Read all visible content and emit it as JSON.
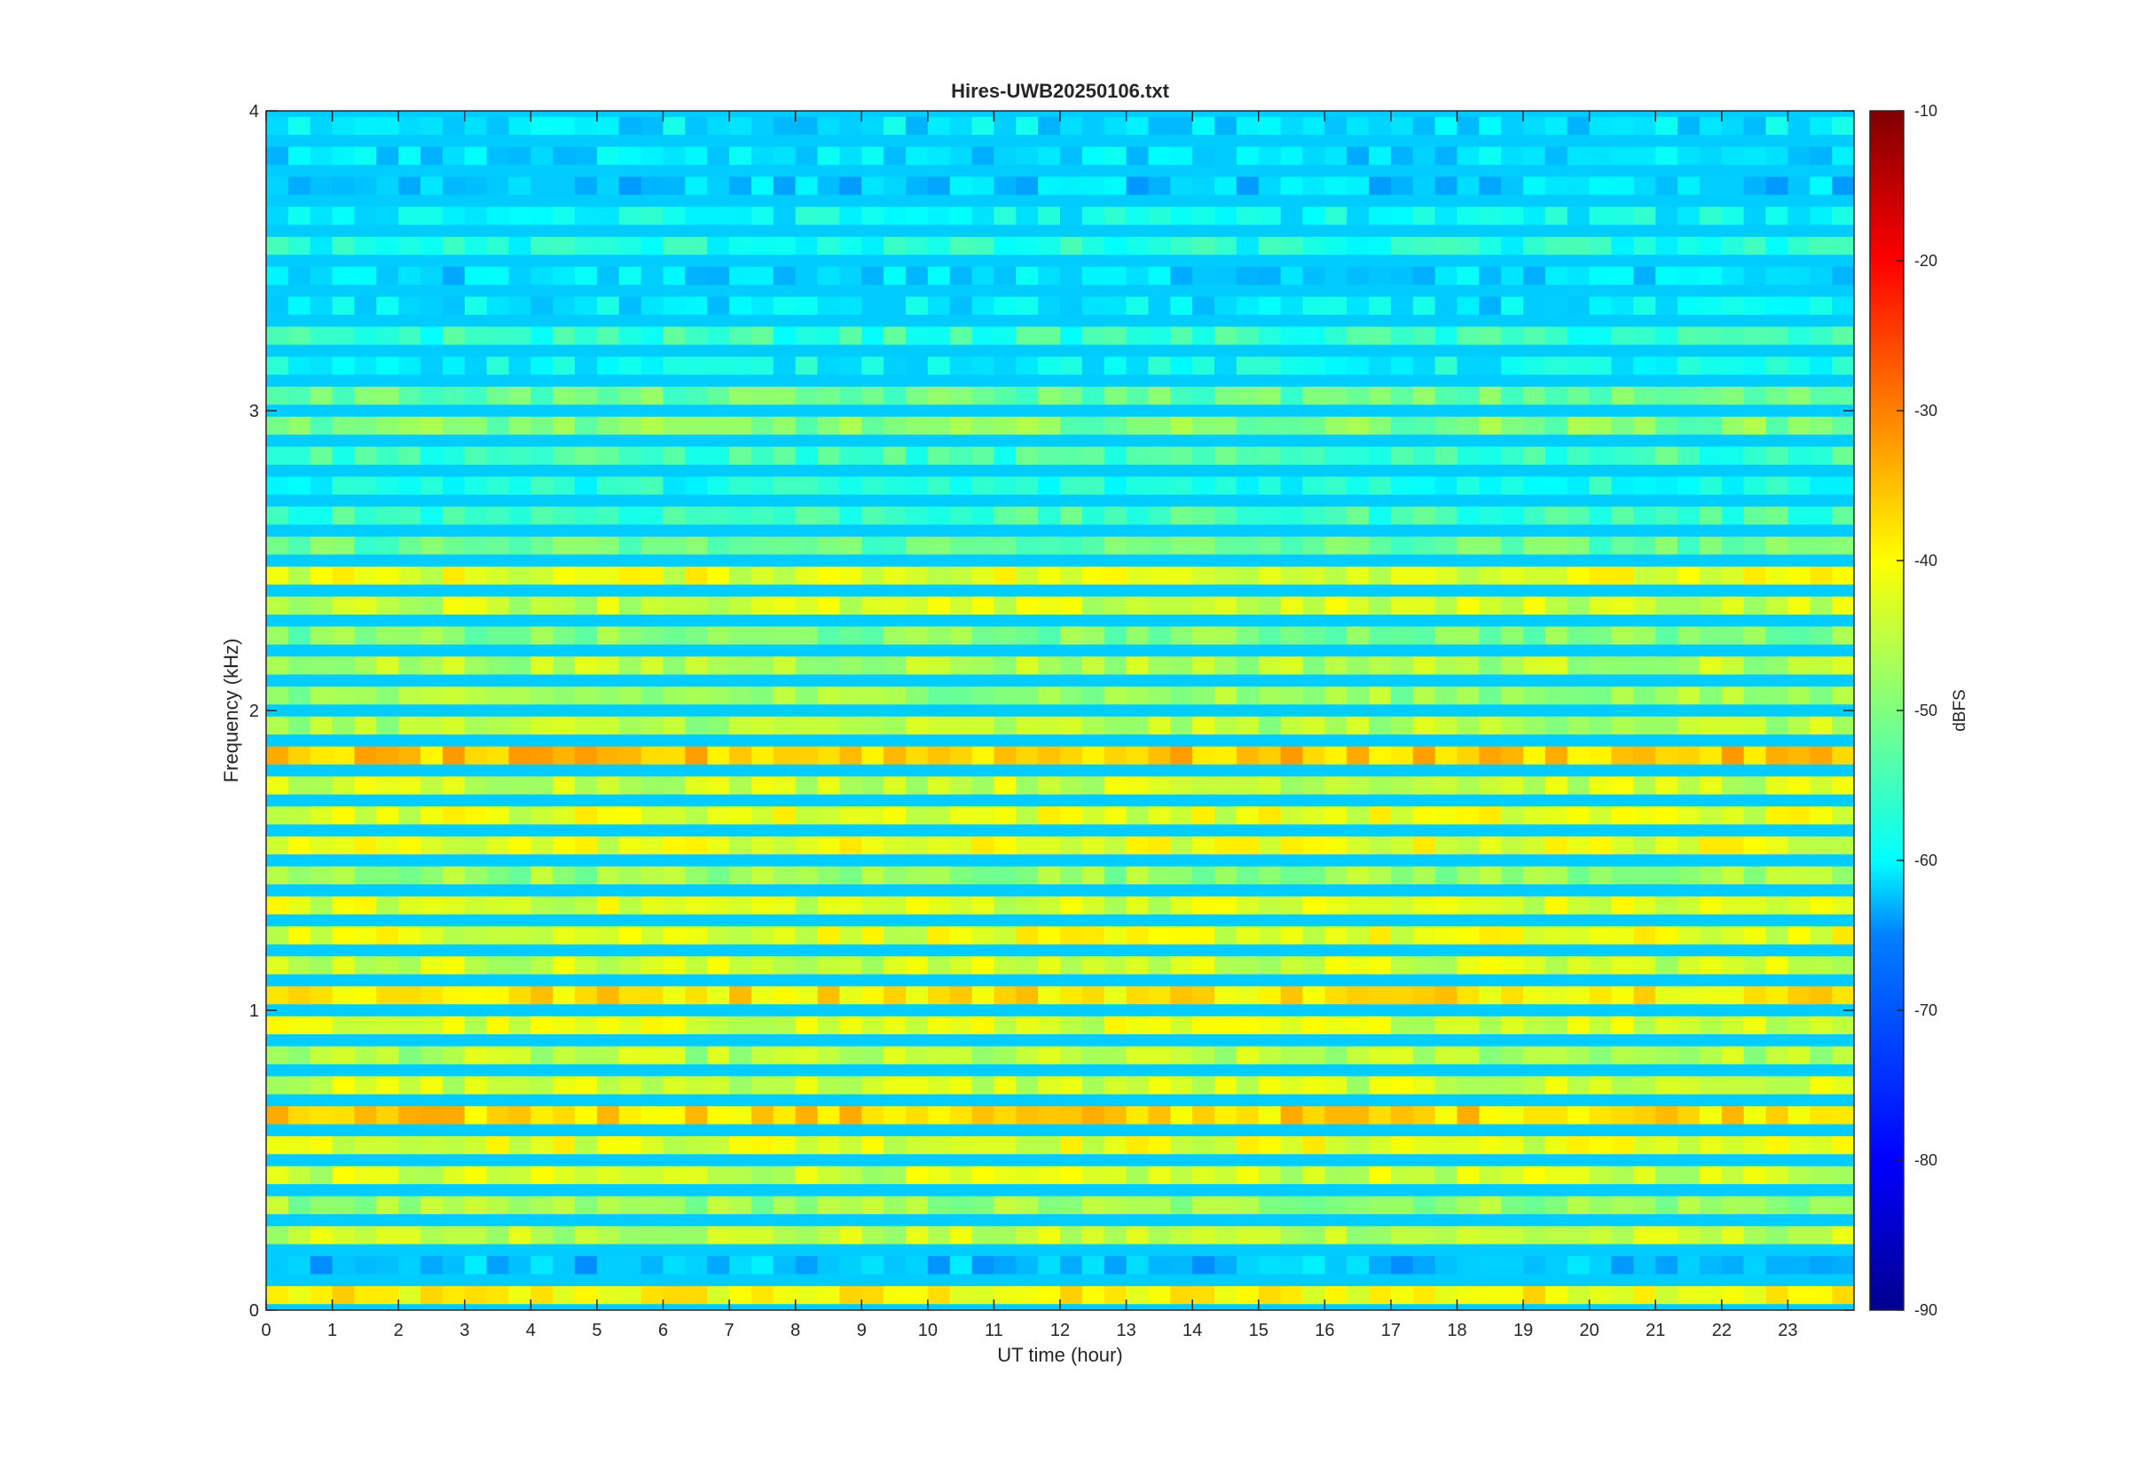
{
  "chart_data": {
    "type": "heatmap",
    "title": "Hires-UWB20250106.txt",
    "xlabel": "UT time (hour)",
    "ylabel": "Frequency (kHz)",
    "xlim": [
      0,
      24
    ],
    "ylim": [
      0,
      4
    ],
    "x_ticks": [
      "0",
      "1",
      "2",
      "3",
      "4",
      "5",
      "6",
      "7",
      "8",
      "9",
      "10",
      "11",
      "12",
      "13",
      "14",
      "15",
      "16",
      "17",
      "18",
      "19",
      "20",
      "21",
      "22",
      "23"
    ],
    "y_ticks": [
      "0",
      "1",
      "2",
      "3",
      "4"
    ],
    "colorbar": {
      "label": "dBFS",
      "clim": [
        -90,
        -10
      ],
      "ticks": [
        "-10",
        "-20",
        "-30",
        "-40",
        "-50",
        "-60",
        "-70",
        "-80",
        "-90"
      ],
      "colormap": "jet",
      "colors": [
        "#00008f",
        "#0000ff",
        "#0080ff",
        "#00ffff",
        "#80ff80",
        "#ffff00",
        "#ff8000",
        "#ff0000",
        "#800000"
      ]
    },
    "band_spacing_khz": 0.1,
    "band_levels_dbfs": [
      {
        "f": 0.05,
        "level": -40
      },
      {
        "f": 0.15,
        "level": -65
      },
      {
        "f": 0.25,
        "level": -45
      },
      {
        "f": 0.35,
        "level": -48
      },
      {
        "f": 0.45,
        "level": -44
      },
      {
        "f": 0.55,
        "level": -42
      },
      {
        "f": 0.65,
        "level": -37
      },
      {
        "f": 0.75,
        "level": -44
      },
      {
        "f": 0.85,
        "level": -46
      },
      {
        "f": 0.95,
        "level": -43
      },
      {
        "f": 1.05,
        "level": -38
      },
      {
        "f": 1.15,
        "level": -44
      },
      {
        "f": 1.25,
        "level": -42
      },
      {
        "f": 1.35,
        "level": -43
      },
      {
        "f": 1.45,
        "level": -48
      },
      {
        "f": 1.55,
        "level": -42
      },
      {
        "f": 1.65,
        "level": -42
      },
      {
        "f": 1.75,
        "level": -44
      },
      {
        "f": 1.85,
        "level": -36
      },
      {
        "f": 1.95,
        "level": -46
      },
      {
        "f": 2.05,
        "level": -48
      },
      {
        "f": 2.15,
        "level": -46
      },
      {
        "f": 2.25,
        "level": -50
      },
      {
        "f": 2.35,
        "level": -44
      },
      {
        "f": 2.45,
        "level": -42
      },
      {
        "f": 2.55,
        "level": -52
      },
      {
        "f": 2.65,
        "level": -55
      },
      {
        "f": 2.75,
        "level": -58
      },
      {
        "f": 2.85,
        "level": -55
      },
      {
        "f": 2.95,
        "level": -50
      },
      {
        "f": 3.05,
        "level": -52
      },
      {
        "f": 3.15,
        "level": -60
      },
      {
        "f": 3.25,
        "level": -56
      },
      {
        "f": 3.35,
        "level": -62
      },
      {
        "f": 3.45,
        "level": -63
      },
      {
        "f": 3.55,
        "level": -58
      },
      {
        "f": 3.65,
        "level": -60
      },
      {
        "f": 3.75,
        "level": -64
      },
      {
        "f": 3.85,
        "level": -63
      },
      {
        "f": 3.95,
        "level": -62
      }
    ],
    "band_gap_level_dbfs": -64
  }
}
